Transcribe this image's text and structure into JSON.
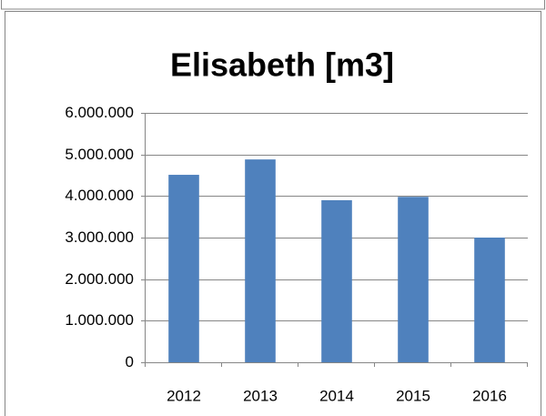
{
  "chart_data": {
    "type": "bar",
    "title": "Elisabeth [m3]",
    "categories": [
      "2012",
      "2013",
      "2014",
      "2015",
      "2016"
    ],
    "values": [
      4510000,
      4880000,
      3900000,
      3980000,
      3000000
    ],
    "color": "#4f81bd",
    "ylim": [
      0,
      6000000
    ],
    "yticks": [
      0,
      {
        "value": 1000000,
        "label": "1.000.000"
      },
      {
        "value": 2000000,
        "label": "2.000.000"
      },
      {
        "value": 3000000,
        "label": "3.000.000"
      },
      {
        "value": 4000000,
        "label": "4.000.000"
      },
      {
        "value": 5000000,
        "label": "5.000.000"
      },
      {
        "value": 6000000,
        "label": "6.000.000"
      }
    ],
    "grid": true
  }
}
